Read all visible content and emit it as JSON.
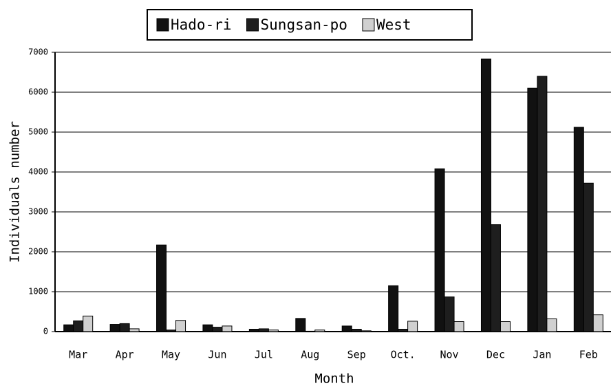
{
  "chart_data": {
    "type": "bar",
    "xlabel": "Month",
    "ylabel": "Individuals number",
    "categories": [
      "Mar",
      "Apr",
      "May",
      "Jun",
      "Jul",
      "Aug",
      "Sep",
      "Oct.",
      "Nov",
      "Dec",
      "Jan",
      "Feb"
    ],
    "series": [
      {
        "name": "Hado-ri",
        "color": "#111111",
        "values": [
          170,
          180,
          2170,
          170,
          60,
          330,
          140,
          1150,
          4080,
          6830,
          6100,
          5120
        ]
      },
      {
        "name": "Sungsan-po",
        "color": "#1e1e1e",
        "values": [
          270,
          200,
          40,
          110,
          70,
          10,
          60,
          60,
          870,
          2680,
          6400,
          3720
        ]
      },
      {
        "name": "West",
        "color": "#d0d0d0",
        "values": [
          390,
          70,
          280,
          140,
          40,
          40,
          20,
          260,
          250,
          250,
          320,
          420
        ]
      }
    ],
    "ylim": [
      0,
      7000
    ],
    "yticks": [
      0,
      1000,
      2000,
      3000,
      4000,
      5000,
      6000,
      7000
    ],
    "grid": true,
    "legend": "top"
  }
}
